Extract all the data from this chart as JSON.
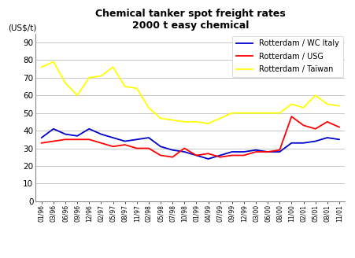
{
  "title_line1": "Chemical tanker spot freight rates",
  "title_line2": "2000 t easy chemical",
  "ylabel": "(US$/t)",
  "ylim": [
    0,
    95
  ],
  "yticks": [
    0,
    10,
    20,
    30,
    40,
    50,
    60,
    70,
    80,
    90
  ],
  "x_labels": [
    "01/96",
    "03/96",
    "06/96",
    "09/96",
    "12/96",
    "02/97",
    "05/97",
    "08/97",
    "11/97",
    "02/98",
    "05/98",
    "07/98",
    "10/98",
    "01/99",
    "04/99",
    "07/99",
    "09/99",
    "12/99",
    "03/00",
    "06/00",
    "08/00",
    "11/00",
    "02/01",
    "05/01",
    "08/01",
    "11/01"
  ],
  "rotterdam_wc_italy": [
    36,
    41,
    38,
    37,
    41,
    38,
    36,
    34,
    35,
    36,
    31,
    29,
    28,
    26,
    24,
    26,
    28,
    28,
    29,
    28,
    28,
    33,
    33,
    34,
    36,
    35
  ],
  "rotterdam_usg": [
    33,
    34,
    35,
    35,
    35,
    33,
    31,
    32,
    30,
    30,
    26,
    25,
    30,
    26,
    27,
    25,
    26,
    26,
    28,
    28,
    29,
    48,
    43,
    41,
    45,
    42
  ],
  "rotterdam_taiwan": [
    76,
    79,
    67,
    60,
    70,
    71,
    76,
    65,
    64,
    53,
    47,
    46,
    45,
    45,
    44,
    47,
    50,
    50,
    50,
    50,
    50,
    55,
    53,
    60,
    55,
    54
  ],
  "color_wc_italy": "#0000CC",
  "color_usg": "#FF0000",
  "color_taiwan": "#FFFF00",
  "legend_labels": [
    "Rotterdam / WC Italy",
    "Rotterdam / USG",
    "Rotterdam / Taïwan"
  ],
  "background_color": "#FFFFFF",
  "grid_color": "#C8C8C8",
  "line_width": 1.3
}
